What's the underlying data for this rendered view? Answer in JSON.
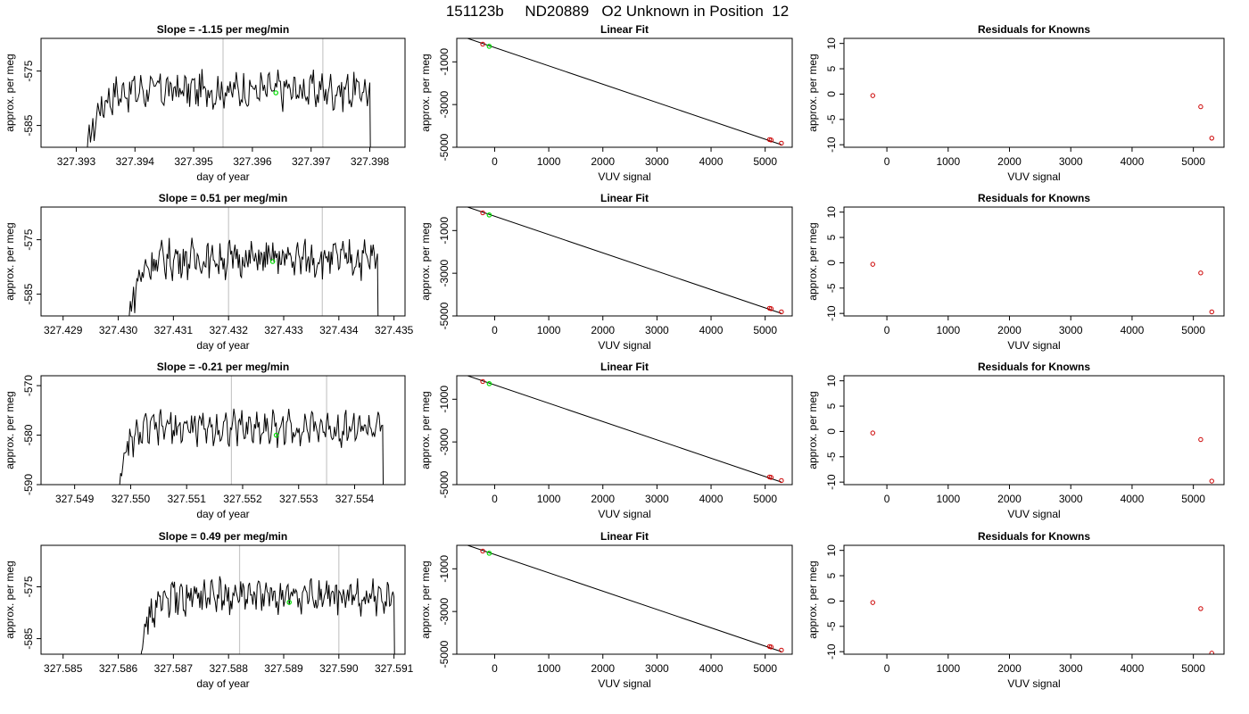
{
  "page_title": "151123b     ND20889   O2 Unknown in Position  12",
  "colors": {
    "line": "#000000",
    "known_point": "#cc0000",
    "unknown_point": "#00dd00",
    "vline": "#c8c8c8",
    "axis": "#000000"
  },
  "chart_data": [
    {
      "type": "line",
      "title": "Slope =  -1.15  per meg/min",
      "xlabel": "day of year",
      "ylabel": "approx. per meg",
      "xlim": [
        327.3924,
        327.3986
      ],
      "ylim": [
        -589,
        -569
      ],
      "xticks": [
        "327.393",
        "327.394",
        "327.395",
        "327.396",
        "327.397",
        "327.398"
      ],
      "yticks": [
        "-575",
        "-585"
      ],
      "vlines": [
        327.3955,
        327.3972
      ],
      "signal_start": 327.3932,
      "signal_end": 327.398,
      "unknown_point": {
        "x": 327.3964,
        "y": -579
      }
    },
    {
      "type": "line",
      "title": "Linear Fit",
      "xlabel": "VUV signal",
      "ylabel": "approx. per meg",
      "xlim": [
        -700,
        5500
      ],
      "ylim": [
        -5000,
        100
      ],
      "xticks": [
        "0",
        "1000",
        "2000",
        "3000",
        "4000",
        "5000"
      ],
      "yticks": [
        "-1000",
        "-3000",
        "-5000"
      ],
      "fit_line": {
        "x": [
          -500,
          5300
        ],
        "y": [
          100,
          -4880
        ]
      },
      "known_points": [
        {
          "x": -220,
          "y": -170
        },
        {
          "x": 5080,
          "y": -4640
        },
        {
          "x": 5110,
          "y": -4660
        },
        {
          "x": 5300,
          "y": -4810
        }
      ],
      "unknown_point": {
        "x": -100,
        "y": -270
      }
    },
    {
      "type": "scatter",
      "title": "Residuals for Knowns",
      "xlabel": "VUV signal",
      "ylabel": "approx. per meg",
      "xlim": [
        -700,
        5500
      ],
      "ylim": [
        -10.5,
        11
      ],
      "xticks": [
        "0",
        "1000",
        "2000",
        "3000",
        "4000",
        "5000"
      ],
      "yticks": [
        "10",
        "5",
        "0",
        "-5",
        "-10"
      ],
      "points": [
        {
          "x": -230,
          "y": -0.3
        },
        {
          "x": 5120,
          "y": -2.5
        },
        {
          "x": 5300,
          "y": -8.7
        }
      ]
    },
    {
      "type": "line",
      "title": "Slope =  0.51  per meg/min",
      "xlabel": "day of year",
      "ylabel": "approx. per meg",
      "xlim": [
        327.4286,
        327.4352
      ],
      "ylim": [
        -589,
        -569
      ],
      "xticks": [
        "327.429",
        "327.430",
        "327.431",
        "327.432",
        "327.433",
        "327.434",
        "327.435"
      ],
      "yticks": [
        "-575",
        "-585"
      ],
      "vlines": [
        327.432,
        327.4337
      ],
      "signal_start": 327.4302,
      "signal_end": 327.4347,
      "unknown_point": {
        "x": 327.4328,
        "y": -579
      }
    },
    {
      "type": "line",
      "title": "Linear Fit",
      "xlabel": "VUV signal",
      "ylabel": "approx. per meg",
      "xlim": [
        -700,
        5500
      ],
      "ylim": [
        -5000,
        100
      ],
      "xticks": [
        "0",
        "1000",
        "2000",
        "3000",
        "4000",
        "5000"
      ],
      "yticks": [
        "-1000",
        "-3000",
        "-5000"
      ],
      "fit_line": {
        "x": [
          -500,
          5300
        ],
        "y": [
          100,
          -4880
        ]
      },
      "known_points": [
        {
          "x": -220,
          "y": -170
        },
        {
          "x": 5080,
          "y": -4640
        },
        {
          "x": 5110,
          "y": -4660
        },
        {
          "x": 5300,
          "y": -4810
        }
      ],
      "unknown_point": {
        "x": -100,
        "y": -270
      }
    },
    {
      "type": "scatter",
      "title": "Residuals for Knowns",
      "xlabel": "VUV signal",
      "ylabel": "approx. per meg",
      "xlim": [
        -700,
        5500
      ],
      "ylim": [
        -10.5,
        11
      ],
      "xticks": [
        "0",
        "1000",
        "2000",
        "3000",
        "4000",
        "5000"
      ],
      "yticks": [
        "10",
        "5",
        "0",
        "-5",
        "-10"
      ],
      "points": [
        {
          "x": -230,
          "y": -0.3
        },
        {
          "x": 5120,
          "y": -2.0
        },
        {
          "x": 5300,
          "y": -9.7
        }
      ]
    },
    {
      "type": "line",
      "title": "Slope =  -0.21  per meg/min",
      "xlabel": "day of year",
      "ylabel": "approx. per meg",
      "xlim": [
        327.5484,
        327.5549
      ],
      "ylim": [
        -590,
        -568
      ],
      "xticks": [
        "327.549",
        "327.550",
        "327.551",
        "327.552",
        "327.553",
        "327.554"
      ],
      "yticks": [
        "-570",
        "-580",
        "-590"
      ],
      "vlines": [
        327.5518,
        327.5535
      ],
      "signal_start": 327.5498,
      "signal_end": 327.5545,
      "unknown_point": {
        "x": 327.5526,
        "y": -580
      }
    },
    {
      "type": "line",
      "title": "Linear Fit",
      "xlabel": "VUV signal",
      "ylabel": "approx. per meg",
      "xlim": [
        -700,
        5500
      ],
      "ylim": [
        -5000,
        100
      ],
      "xticks": [
        "0",
        "1000",
        "2000",
        "3000",
        "4000",
        "5000"
      ],
      "yticks": [
        "-1000",
        "-3000",
        "-5000"
      ],
      "fit_line": {
        "x": [
          -500,
          5300
        ],
        "y": [
          100,
          -4880
        ]
      },
      "known_points": [
        {
          "x": -220,
          "y": -170
        },
        {
          "x": 5080,
          "y": -4640
        },
        {
          "x": 5110,
          "y": -4660
        },
        {
          "x": 5300,
          "y": -4810
        }
      ],
      "unknown_point": {
        "x": -100,
        "y": -270
      }
    },
    {
      "type": "scatter",
      "title": "Residuals for Knowns",
      "xlabel": "VUV signal",
      "ylabel": "approx. per meg",
      "xlim": [
        -700,
        5500
      ],
      "ylim": [
        -10.5,
        11
      ],
      "xticks": [
        "0",
        "1000",
        "2000",
        "3000",
        "4000",
        "5000"
      ],
      "yticks": [
        "10",
        "5",
        "0",
        "-5",
        "-10"
      ],
      "points": [
        {
          "x": -230,
          "y": -0.3
        },
        {
          "x": 5120,
          "y": -1.6
        },
        {
          "x": 5300,
          "y": -9.8
        }
      ]
    },
    {
      "type": "line",
      "title": "Slope =  0.49  per meg/min",
      "xlabel": "day of year",
      "ylabel": "approx. per meg",
      "xlim": [
        327.5846,
        327.5912
      ],
      "ylim": [
        -588,
        -567
      ],
      "xticks": [
        "327.585",
        "327.586",
        "327.587",
        "327.588",
        "327.589",
        "327.590",
        "327.591"
      ],
      "yticks": [
        "-575",
        "-585"
      ],
      "vlines": [
        327.5882,
        327.59
      ],
      "signal_start": 327.5864,
      "signal_end": 327.591,
      "unknown_point": {
        "x": 327.5891,
        "y": -578
      }
    },
    {
      "type": "line",
      "title": "Linear Fit",
      "xlabel": "VUV signal",
      "ylabel": "approx. per meg",
      "xlim": [
        -700,
        5500
      ],
      "ylim": [
        -5000,
        100
      ],
      "xticks": [
        "0",
        "1000",
        "2000",
        "3000",
        "4000",
        "5000"
      ],
      "yticks": [
        "-1000",
        "-3000",
        "-5000"
      ],
      "fit_line": {
        "x": [
          -500,
          5300
        ],
        "y": [
          100,
          -4880
        ]
      },
      "known_points": [
        {
          "x": -220,
          "y": -170
        },
        {
          "x": 5080,
          "y": -4640
        },
        {
          "x": 5110,
          "y": -4660
        },
        {
          "x": 5300,
          "y": -4810
        }
      ],
      "unknown_point": {
        "x": -100,
        "y": -270
      }
    },
    {
      "type": "scatter",
      "title": "Residuals for Knowns",
      "xlabel": "VUV signal",
      "ylabel": "approx. per meg",
      "xlim": [
        -700,
        5500
      ],
      "ylim": [
        -10.5,
        11
      ],
      "xticks": [
        "0",
        "1000",
        "2000",
        "3000",
        "4000",
        "5000"
      ],
      "yticks": [
        "10",
        "5",
        "0",
        "-5",
        "-10"
      ],
      "points": [
        {
          "x": -230,
          "y": -0.3
        },
        {
          "x": 5120,
          "y": -1.5
        },
        {
          "x": 5300,
          "y": -10.3
        }
      ]
    }
  ]
}
